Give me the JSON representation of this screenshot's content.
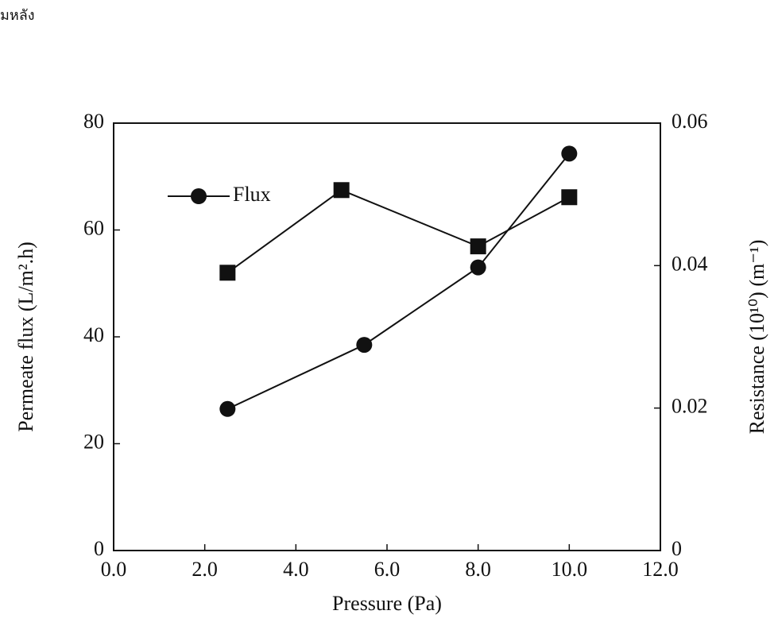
{
  "chart_data": {
    "type": "line",
    "annotation": "มหลัง",
    "xlabel": "Pressure (Pa)",
    "ylabel": "Permeate flux (L/m².h)",
    "y2label": "Resistance (10¹⁰) (m⁻¹)",
    "xlim": [
      0,
      12
    ],
    "xticks": [
      {
        "value": 0,
        "label": "0.0"
      },
      {
        "value": 2,
        "label": "2.0"
      },
      {
        "value": 4,
        "label": "4.0"
      },
      {
        "value": 6,
        "label": "6.0"
      },
      {
        "value": 8,
        "label": "8.0"
      },
      {
        "value": 10,
        "label": "10.0"
      },
      {
        "value": 12,
        "label": "12.0"
      }
    ],
    "ylim": [
      0,
      80
    ],
    "yticks": [
      0,
      20,
      40,
      60,
      80
    ],
    "y2lim": [
      0,
      0.06
    ],
    "y2ticks": [
      0,
      0.02,
      0.04,
      0.06
    ],
    "legend": "upper left",
    "series": [
      {
        "name": "Flux",
        "color": "#111111",
        "marker": "circle",
        "x": [
          2.5,
          5.5,
          8.0,
          10.0
        ],
        "values": [
          26.5,
          38.5,
          53,
          74.3
        ]
      },
      {
        "color": "#111111",
        "marker": "square",
        "axis": "y2",
        "x": [
          2.5,
          5.0,
          8.0,
          10.0
        ],
        "values": [
          0.039,
          0.0506,
          0.0427,
          0.0496
        ]
      }
    ]
  }
}
